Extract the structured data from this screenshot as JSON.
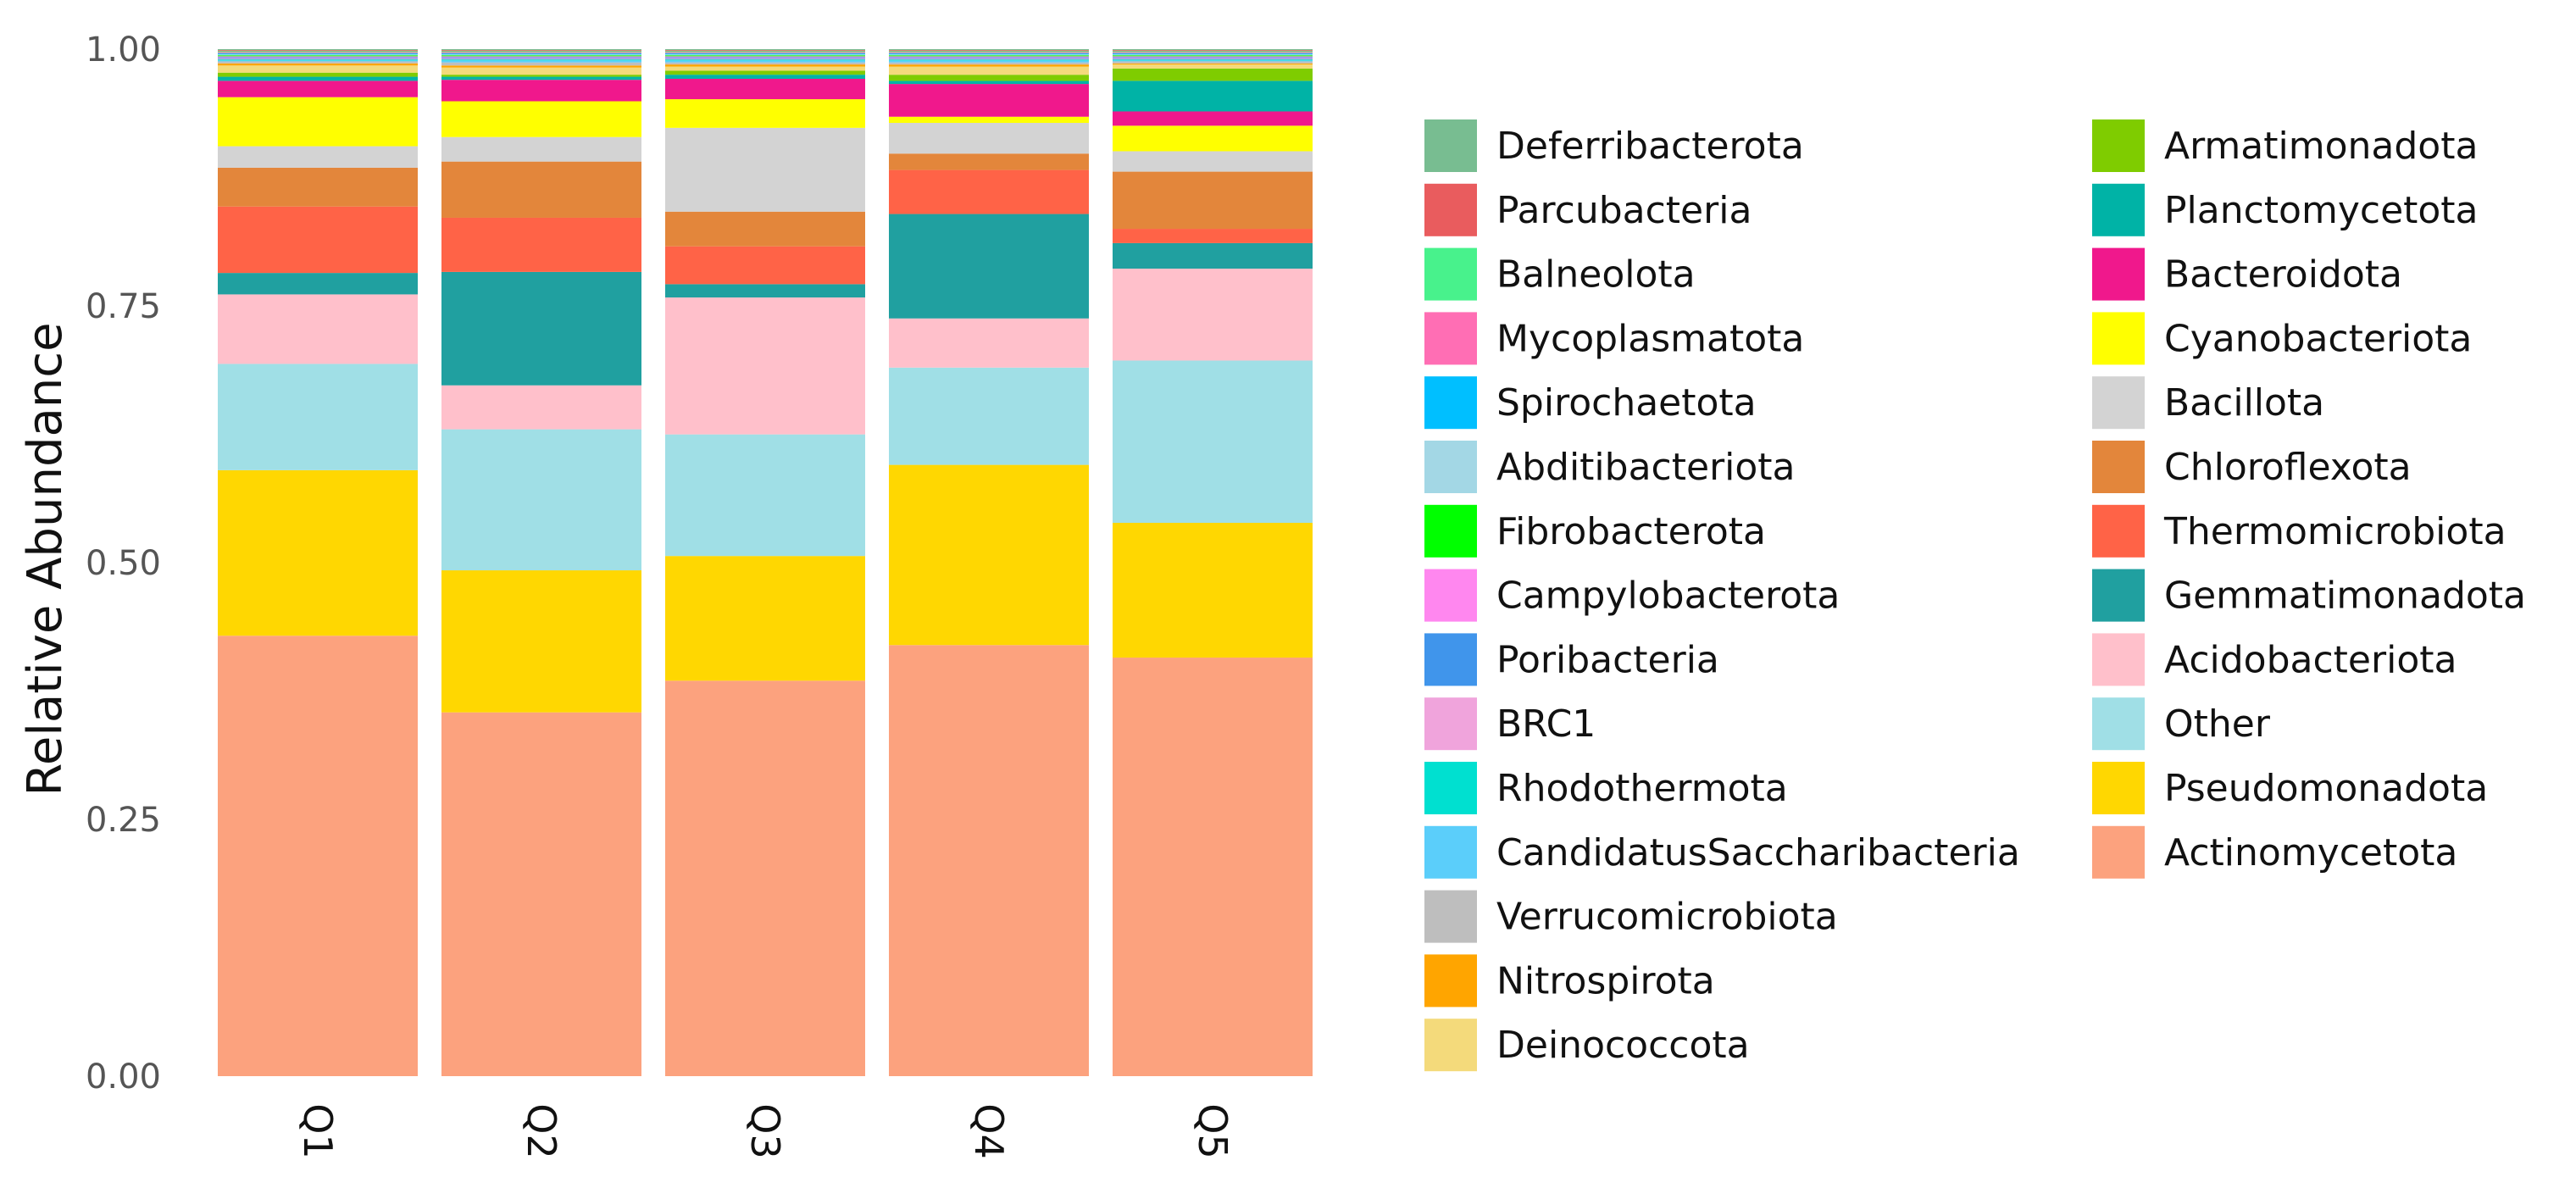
{
  "chart_data": {
    "type": "bar",
    "stacked": true,
    "title": "",
    "xlabel": "",
    "ylabel": "Relative Abundance",
    "ylim": [
      0,
      1
    ],
    "yticks": [
      "0.00",
      "0.25",
      "0.50",
      "0.75",
      "1.00"
    ],
    "ytick_values": [
      0,
      0.25,
      0.5,
      0.75,
      1.0
    ],
    "categories": [
      "Q1",
      "Q2",
      "Q3",
      "Q4",
      "Q5"
    ],
    "legend_position": "right",
    "series": [
      {
        "name": "Actinomycetota",
        "color": "#FCA27E",
        "values": [
          0.431,
          0.356,
          0.387,
          0.421,
          0.41
        ]
      },
      {
        "name": "Pseudomonadota",
        "color": "#FFD701",
        "values": [
          0.162,
          0.139,
          0.122,
          0.176,
          0.132
        ]
      },
      {
        "name": "Other",
        "color": "#A0DFE6",
        "values": [
          0.104,
          0.138,
          0.119,
          0.095,
          0.159
        ]
      },
      {
        "name": "Acidobacteriota",
        "color": "#FFC0CB",
        "values": [
          0.068,
          0.043,
          0.134,
          0.048,
          0.09
        ]
      },
      {
        "name": "Gemmatimonadota",
        "color": "#20A0A0",
        "values": [
          0.021,
          0.111,
          0.013,
          0.102,
          0.025
        ]
      },
      {
        "name": "Thermomicrobiota",
        "color": "#FF6347",
        "values": [
          0.065,
          0.053,
          0.037,
          0.043,
          0.014
        ]
      },
      {
        "name": "Chloroflexota",
        "color": "#E3863B",
        "values": [
          0.038,
          0.055,
          0.034,
          0.016,
          0.056
        ]
      },
      {
        "name": "Bacillota",
        "color": "#D3D3D3",
        "values": [
          0.021,
          0.024,
          0.082,
          0.03,
          0.02
        ]
      },
      {
        "name": "Cyanobacteriota",
        "color": "#FFFF00",
        "values": [
          0.048,
          0.035,
          0.028,
          0.006,
          0.025
        ]
      },
      {
        "name": "Bacteroidota",
        "color": "#F0188C",
        "values": [
          0.016,
          0.021,
          0.02,
          0.032,
          0.014
        ]
      },
      {
        "name": "Planctomycetota",
        "color": "#00B3A6",
        "values": [
          0.004,
          0.003,
          0.004,
          0.003,
          0.03
        ]
      },
      {
        "name": "Armatimonadota",
        "color": "#7FCC00",
        "values": [
          0.004,
          0.002,
          0.004,
          0.006,
          0.012
        ]
      },
      {
        "name": "Deinococcota",
        "color": "#F4DA7B",
        "values": [
          0.007,
          0.007,
          0.004,
          0.008,
          0.004
        ]
      },
      {
        "name": "Nitrospirota",
        "color": "#FFA500",
        "values": [
          0.002,
          0.002,
          0.002,
          0.002,
          0.001
        ]
      },
      {
        "name": "Verrucomicrobiota",
        "color": "#BEBEBE",
        "values": [
          0.002,
          0.003,
          0.002,
          0.002,
          0.002
        ]
      },
      {
        "name": "CandidatusSaccharibacteria",
        "color": "#5BCEFA",
        "values": [
          0.001,
          0.002,
          0.002,
          0.002,
          0.001
        ]
      },
      {
        "name": "Rhodothermota",
        "color": "#00E0D0",
        "values": [
          0.001,
          0.001,
          0.001,
          0.001,
          0.001
        ]
      },
      {
        "name": "BRC1",
        "color": "#F0A4DC",
        "values": [
          0.001,
          0.001,
          0.001,
          0.001,
          0.001
        ]
      },
      {
        "name": "Poribacteria",
        "color": "#4095EB",
        "values": [
          0.001,
          0.001,
          0.001,
          0.001,
          0.001
        ]
      },
      {
        "name": "Campylobacterota",
        "color": "#FF87EF",
        "values": [
          0.001,
          0.001,
          0.001,
          0.001,
          0.001
        ]
      },
      {
        "name": "Fibrobacterota",
        "color": "#00FF00",
        "values": [
          0.001,
          0.001,
          0.001,
          0.001,
          0.001
        ]
      },
      {
        "name": "Abditibacteriota",
        "color": "#A3D7E5",
        "values": [
          0.001,
          0.001,
          0.001,
          0.001,
          0.001
        ]
      },
      {
        "name": "Spirochaetota",
        "color": "#00BFFF",
        "values": [
          0.001,
          0.001,
          0.001,
          0.001,
          0.001
        ]
      },
      {
        "name": "Mycoplasmatota",
        "color": "#FF6EB4",
        "values": [
          0.001,
          0.001,
          0.001,
          0.001,
          0.001
        ]
      },
      {
        "name": "Balneolota",
        "color": "#48F28C",
        "values": [
          0.001,
          0.001,
          0.001,
          0.001,
          0.001
        ]
      },
      {
        "name": "Parcubacteria",
        "color": "#E95C5E",
        "values": [
          0.001,
          0.001,
          0.001,
          0.001,
          0.001
        ]
      },
      {
        "name": "Deferribacterota",
        "color": "#78BD91",
        "values": [
          0.001,
          0.001,
          0.001,
          0.001,
          0.001
        ]
      }
    ],
    "legend_order": [
      "Deferribacterota",
      "Parcubacteria",
      "Balneolota",
      "Mycoplasmatota",
      "Spirochaetota",
      "Abditibacteriota",
      "Fibrobacterota",
      "Campylobacterota",
      "Poribacteria",
      "BRC1",
      "Rhodothermota",
      "CandidatusSaccharibacteria",
      "Verrucomicrobiota",
      "Nitrospirota",
      "Deinococcota",
      "Armatimonadota",
      "Planctomycetota",
      "Bacteroidota",
      "Cyanobacteriota",
      "Bacillota",
      "Chloroflexota",
      "Thermomicrobiota",
      "Gemmatimonadota",
      "Acidobacteriota",
      "Other",
      "Pseudomonadota",
      "Actinomycetota"
    ]
  }
}
